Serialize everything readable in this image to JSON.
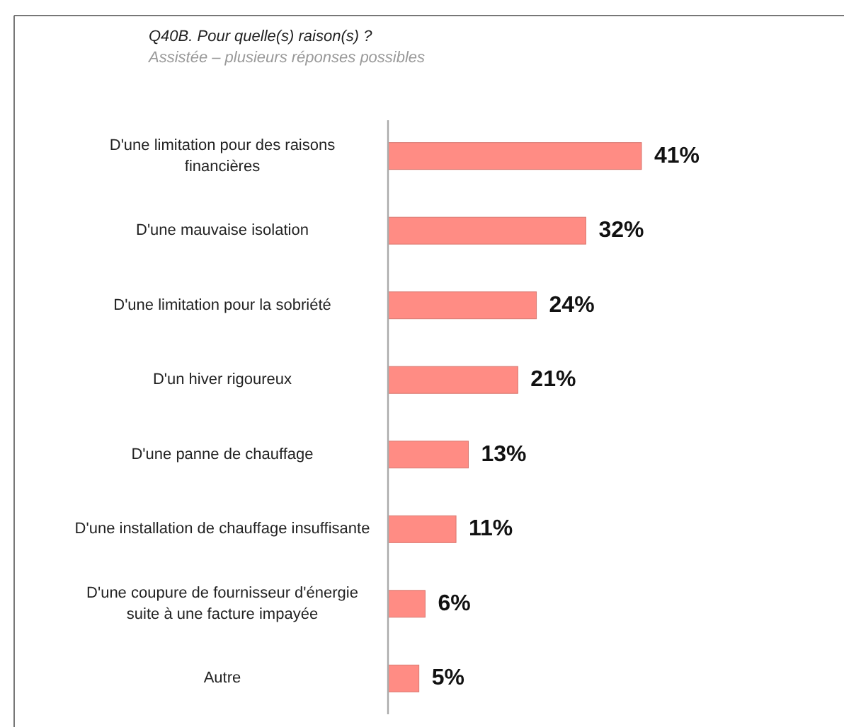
{
  "chart_data": {
    "type": "bar",
    "orientation": "horizontal",
    "title": "Q40B. Pour quelle(s) raison(s) ?",
    "subtitle": "Assistée – plusieurs réponses possibles",
    "categories": [
      "D'une limitation pour des raisons financières",
      "D'une mauvaise isolation",
      "D'une limitation pour la sobriété",
      "D'un hiver rigoureux",
      "D'une panne de chauffage",
      "D'une installation de chauffage insuffisante",
      "D'une coupure de fournisseur d'énergie suite à une facture impayée",
      "Autre"
    ],
    "values": [
      41,
      32,
      24,
      21,
      13,
      11,
      6,
      5
    ],
    "value_labels": [
      "41%",
      "32%",
      "24%",
      "21%",
      "13%",
      "11%",
      "6%",
      "5%"
    ],
    "color": "#ff8c84"
  }
}
